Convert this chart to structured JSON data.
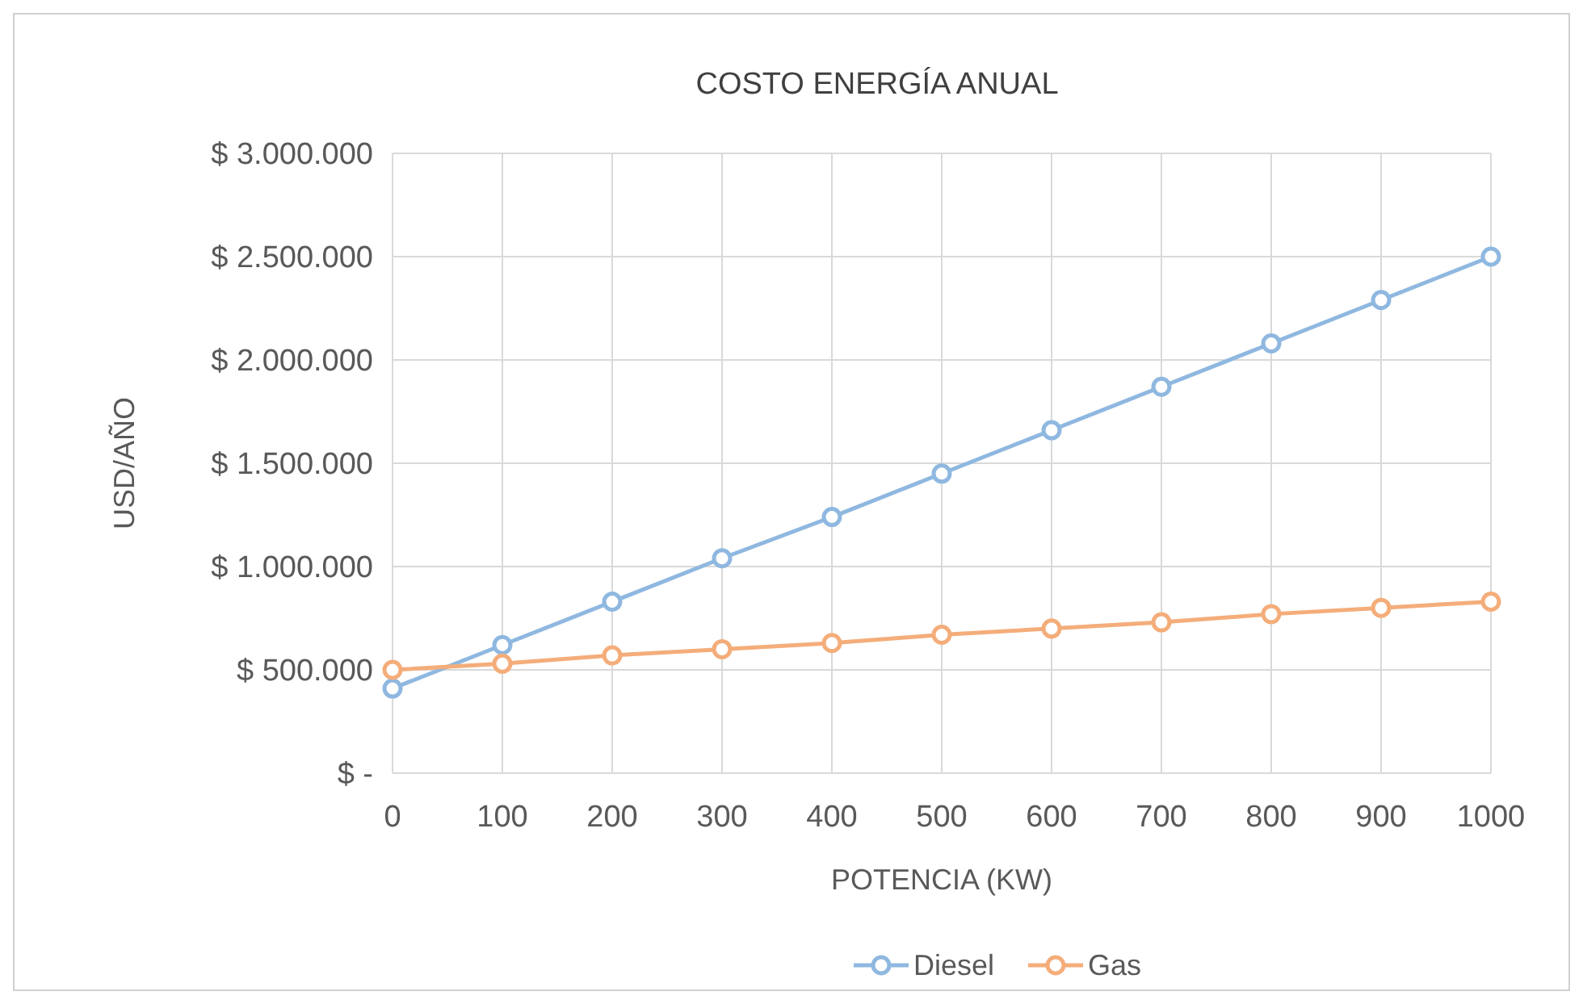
{
  "chart_data": {
    "type": "line",
    "title": "COSTO ENERGÍA ANUAL",
    "xlabel": "POTENCIA (KW)",
    "ylabel": "USD/AÑO",
    "x": [
      0,
      100,
      200,
      300,
      400,
      500,
      600,
      700,
      800,
      900,
      1000
    ],
    "series": [
      {
        "name": "Diesel",
        "color": "#8fb8e0",
        "values": [
          410000,
          620000,
          830000,
          1040000,
          1240000,
          1450000,
          1660000,
          1870000,
          2080000,
          2290000,
          2500000
        ]
      },
      {
        "name": "Gas",
        "color": "#f4ad7a",
        "values": [
          500000,
          530000,
          570000,
          600000,
          630000,
          670000,
          700000,
          730000,
          770000,
          800000,
          830000
        ]
      }
    ],
    "xlim": [
      0,
      1000
    ],
    "xticks": [
      0,
      100,
      200,
      300,
      400,
      500,
      600,
      700,
      800,
      900,
      1000
    ],
    "ylim": [
      0,
      3000000
    ],
    "yticks": [
      {
        "value": 0,
        "label": "$ -"
      },
      {
        "value": 500000,
        "label": "$ 500.000"
      },
      {
        "value": 1000000,
        "label": "$ 1.000.000"
      },
      {
        "value": 1500000,
        "label": "$ 1.500.000"
      },
      {
        "value": 2000000,
        "label": "$ 2.000.000"
      },
      {
        "value": 2500000,
        "label": "$ 2.500.000"
      },
      {
        "value": 3000000,
        "label": "$ 3.000.000"
      }
    ],
    "grid": true,
    "legend": "bottom",
    "marker": "circle",
    "line_style": "solid"
  }
}
